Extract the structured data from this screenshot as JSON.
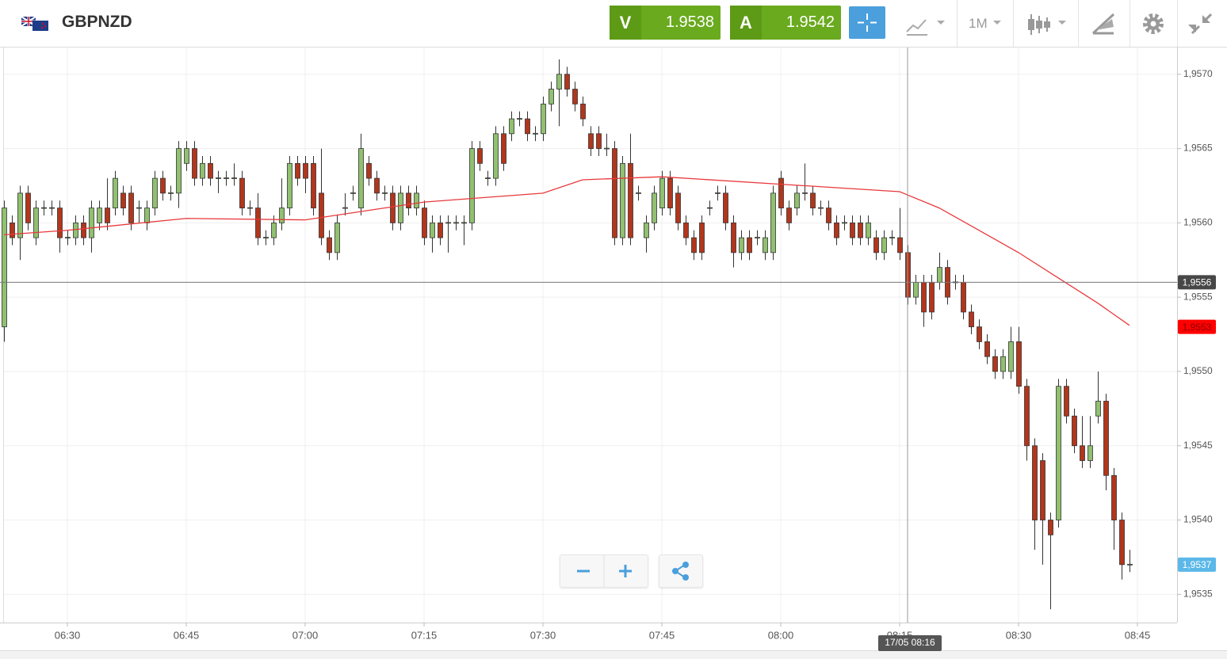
{
  "header": {
    "symbol": "GBPNZD",
    "bid_letter": "V",
    "bid": "1.9538",
    "ask_letter": "A",
    "ask": "1.9542",
    "timeframe": "1M"
  },
  "chart_data": {
    "type": "candlestick",
    "grid": true,
    "up_color": "#90c070",
    "down_color": "#b2361c",
    "xlim": [
      "06:22",
      "08:50"
    ],
    "xticks": [
      "06:30",
      "06:45",
      "07:00",
      "07:15",
      "07:30",
      "07:45",
      "08:00",
      "08:15",
      "08:30",
      "08:45"
    ],
    "ylim": [
      1.95331,
      1.95718
    ],
    "yticks": [
      {
        "value": 1.9535,
        "label": "1,9535"
      },
      {
        "value": 1.954,
        "label": "1,9540"
      },
      {
        "value": 1.9545,
        "label": "1,9545"
      },
      {
        "value": 1.955,
        "label": "1,9550"
      },
      {
        "value": 1.9555,
        "label": "1,9555"
      },
      {
        "value": 1.956,
        "label": "1,9560"
      },
      {
        "value": 1.9565,
        "label": "1,9565"
      },
      {
        "value": 1.957,
        "label": "1,9570"
      }
    ],
    "x": [
      "06:22",
      "06:23",
      "06:24",
      "06:25",
      "06:26",
      "06:27",
      "06:28",
      "06:29",
      "06:30",
      "06:31",
      "06:32",
      "06:33",
      "06:34",
      "06:35",
      "06:36",
      "06:37",
      "06:38",
      "06:39",
      "06:40",
      "06:41",
      "06:42",
      "06:43",
      "06:44",
      "06:45",
      "06:46",
      "06:47",
      "06:48",
      "06:49",
      "06:50",
      "06:51",
      "06:52",
      "06:53",
      "06:54",
      "06:55",
      "06:56",
      "06:57",
      "06:58",
      "06:59",
      "07:00",
      "07:01",
      "07:02",
      "07:03",
      "07:04",
      "07:05",
      "07:06",
      "07:07",
      "07:08",
      "07:09",
      "07:10",
      "07:11",
      "07:12",
      "07:13",
      "07:14",
      "07:15",
      "07:16",
      "07:17",
      "07:18",
      "07:19",
      "07:20",
      "07:21",
      "07:22",
      "07:23",
      "07:24",
      "07:25",
      "07:26",
      "07:27",
      "07:28",
      "07:29",
      "07:30",
      "07:31",
      "07:32",
      "07:33",
      "07:34",
      "07:35",
      "07:36",
      "07:37",
      "07:38",
      "07:39",
      "07:40",
      "07:41",
      "07:42",
      "07:43",
      "07:44",
      "07:45",
      "07:46",
      "07:47",
      "07:48",
      "07:49",
      "07:50",
      "07:51",
      "07:52",
      "07:53",
      "07:54",
      "07:55",
      "07:56",
      "07:57",
      "07:58",
      "07:59",
      "08:00",
      "08:01",
      "08:02",
      "08:03",
      "08:04",
      "08:05",
      "08:06",
      "08:07",
      "08:08",
      "08:09",
      "08:10",
      "08:11",
      "08:12",
      "08:13",
      "08:14",
      "08:15",
      "08:16",
      "08:17",
      "08:18",
      "08:19",
      "08:20",
      "08:21",
      "08:22",
      "08:23",
      "08:24",
      "08:25",
      "08:26",
      "08:27",
      "08:28",
      "08:29",
      "08:30",
      "08:31",
      "08:32",
      "08:33",
      "08:34",
      "08:35",
      "08:36",
      "08:37",
      "08:38",
      "08:39",
      "08:40",
      "08:41",
      "08:42",
      "08:43",
      "08:44"
    ],
    "open": [
      1.9553,
      1.956,
      1.9559,
      1.9562,
      1.9559,
      1.9561,
      1.9561,
      1.9561,
      1.9559,
      1.9559,
      1.956,
      1.9559,
      1.956,
      1.9561,
      1.9561,
      1.9562,
      1.9562,
      1.9561,
      1.956,
      1.9561,
      1.9563,
      1.9562,
      1.9562,
      1.9564,
      1.9565,
      1.9563,
      1.9564,
      1.9563,
      1.9563,
      1.9563,
      1.9563,
      1.9561,
      1.9561,
      1.9559,
      1.9559,
      1.956,
      1.9561,
      1.9564,
      1.9564,
      1.9564,
      1.9562,
      1.9559,
      1.9558,
      1.9561,
      1.9562,
      1.9561,
      1.9564,
      1.9563,
      1.9562,
      1.9562,
      1.956,
      1.9562,
      1.9561,
      1.9561,
      1.9559,
      1.956,
      1.956,
      1.956,
      1.956,
      1.956,
      1.9565,
      1.9563,
      1.9563,
      1.9566,
      1.9566,
      1.9567,
      1.9567,
      1.9566,
      1.9566,
      1.9568,
      1.9569,
      1.957,
      1.9569,
      1.9568,
      1.9566,
      1.9566,
      1.9565,
      1.9565,
      1.9559,
      1.9564,
      1.9562,
      1.9559,
      1.956,
      1.9561,
      1.9563,
      1.9562,
      1.956,
      1.9559,
      1.956,
      1.9561,
      1.9562,
      1.9562,
      1.956,
      1.9558,
      1.9559,
      1.9559,
      1.9558,
      1.9558,
      1.9563,
      1.9561,
      1.9561,
      1.9562,
      1.9562,
      1.9561,
      1.9561,
      1.956,
      1.956,
      1.956,
      1.956,
      1.9559,
      1.9559,
      1.9558,
      1.9559,
      1.9559,
      1.9558,
      1.9555,
      1.9556,
      1.9556,
      1.9556,
      1.9557,
      1.9556,
      1.9556,
      1.9554,
      1.9553,
      1.9552,
      1.9551,
      1.955,
      1.955,
      1.9552,
      1.9549,
      1.9545,
      1.9544,
      1.954,
      1.954,
      1.9549,
      1.9547,
      1.9545,
      1.9544,
      1.9547,
      1.9548,
      1.9543,
      1.954,
      1.9537
    ],
    "high": [
      1.95615,
      1.95605,
      1.95625,
      1.95625,
      1.95615,
      1.95615,
      1.95615,
      1.95615,
      1.95595,
      1.95605,
      1.95605,
      1.95615,
      1.95615,
      1.9563,
      1.95635,
      1.95625,
      1.95625,
      1.95615,
      1.95615,
      1.95635,
      1.95635,
      1.95625,
      1.95655,
      1.95655,
      1.95655,
      1.95645,
      1.95645,
      1.95635,
      1.95635,
      1.9564,
      1.95635,
      1.95615,
      1.9562,
      1.95595,
      1.95605,
      1.9563,
      1.95645,
      1.95645,
      1.95645,
      1.95645,
      1.9565,
      1.95595,
      1.95605,
      1.9562,
      1.95625,
      1.9566,
      1.95645,
      1.95635,
      1.95625,
      1.95625,
      1.95625,
      1.95625,
      1.95625,
      1.95615,
      1.95605,
      1.95605,
      1.95605,
      1.95605,
      1.95605,
      1.95655,
      1.95655,
      1.95635,
      1.95665,
      1.95665,
      1.95675,
      1.95675,
      1.95675,
      1.95665,
      1.95685,
      1.95695,
      1.9571,
      1.95705,
      1.95695,
      1.95685,
      1.95665,
      1.95665,
      1.9566,
      1.95655,
      1.95645,
      1.9566,
      1.95625,
      1.95605,
      1.95625,
      1.95635,
      1.95635,
      1.95625,
      1.95605,
      1.95595,
      1.95605,
      1.95615,
      1.95625,
      1.95625,
      1.95605,
      1.95595,
      1.95595,
      1.95595,
      1.95595,
      1.95625,
      1.95635,
      1.95615,
      1.95625,
      1.9564,
      1.95625,
      1.95615,
      1.95615,
      1.95605,
      1.95605,
      1.95605,
      1.95605,
      1.95605,
      1.95595,
      1.95595,
      1.95595,
      1.9561,
      1.95585,
      1.95565,
      1.95565,
      1.95565,
      1.9558,
      1.95575,
      1.95565,
      1.95565,
      1.95545,
      1.95535,
      1.95525,
      1.95515,
      1.95515,
      1.9553,
      1.9553,
      1.95495,
      1.95455,
      1.95445,
      1.95405,
      1.95495,
      1.95495,
      1.95475,
      1.9547,
      1.9547,
      1.955,
      1.95485,
      1.95435,
      1.95405,
      1.9538
    ],
    "low": [
      1.9552,
      1.95585,
      1.95575,
      1.95595,
      1.95585,
      1.95605,
      1.95605,
      1.9558,
      1.95585,
      1.95585,
      1.95585,
      1.9558,
      1.95595,
      1.95595,
      1.95605,
      1.95605,
      1.95595,
      1.956,
      1.95595,
      1.95605,
      1.95615,
      1.95615,
      1.9561,
      1.95635,
      1.95625,
      1.95625,
      1.95625,
      1.9562,
      1.95625,
      1.95625,
      1.95605,
      1.95605,
      1.95585,
      1.95585,
      1.95585,
      1.95595,
      1.95605,
      1.95625,
      1.9562,
      1.95605,
      1.95585,
      1.95575,
      1.95575,
      1.95605,
      1.95615,
      1.95605,
      1.95625,
      1.95615,
      1.95615,
      1.95595,
      1.95595,
      1.95605,
      1.95605,
      1.95585,
      1.9558,
      1.95585,
      1.9558,
      1.95595,
      1.95585,
      1.95595,
      1.95635,
      1.95625,
      1.95625,
      1.95635,
      1.95655,
      1.95665,
      1.95655,
      1.95655,
      1.95655,
      1.95675,
      1.95665,
      1.95685,
      1.95675,
      1.95665,
      1.95645,
      1.95645,
      1.95645,
      1.95585,
      1.95585,
      1.95585,
      1.95615,
      1.9558,
      1.95595,
      1.95605,
      1.95605,
      1.95595,
      1.95585,
      1.95575,
      1.95575,
      1.95605,
      1.95615,
      1.95595,
      1.9557,
      1.95575,
      1.95575,
      1.95585,
      1.95575,
      1.95575,
      1.95605,
      1.95595,
      1.95605,
      1.95615,
      1.95605,
      1.95605,
      1.95595,
      1.95585,
      1.95595,
      1.95585,
      1.95585,
      1.95585,
      1.95575,
      1.95575,
      1.95585,
      1.95575,
      1.95545,
      1.95545,
      1.9553,
      1.95535,
      1.95555,
      1.95545,
      1.95555,
      1.95535,
      1.95525,
      1.95515,
      1.95505,
      1.95495,
      1.95495,
      1.95495,
      1.95485,
      1.9544,
      1.9538,
      1.9537,
      1.9534,
      1.95395,
      1.95465,
      1.95445,
      1.95435,
      1.95435,
      1.95465,
      1.9542,
      1.9538,
      1.9536,
      1.95365
    ],
    "close": [
      1.9561,
      1.9559,
      1.9562,
      1.956,
      1.9561,
      1.9561,
      1.9561,
      1.9559,
      1.9559,
      1.956,
      1.9559,
      1.9561,
      1.9561,
      1.956,
      1.9563,
      1.9561,
      1.956,
      1.9561,
      1.9561,
      1.9563,
      1.9562,
      1.9562,
      1.9565,
      1.9565,
      1.9563,
      1.9564,
      1.9563,
      1.9563,
      1.9563,
      1.9563,
      1.9561,
      1.9561,
      1.9559,
      1.9559,
      1.956,
      1.9561,
      1.9564,
      1.9563,
      1.9563,
      1.9561,
      1.9559,
      1.9558,
      1.956,
      1.9561,
      1.9562,
      1.9565,
      1.9563,
      1.9562,
      1.9562,
      1.956,
      1.9562,
      1.9561,
      1.9562,
      1.9559,
      1.956,
      1.9559,
      1.956,
      1.956,
      1.956,
      1.9565,
      1.9564,
      1.9563,
      1.9566,
      1.9564,
      1.9567,
      1.9567,
      1.9566,
      1.9566,
      1.9568,
      1.9569,
      1.957,
      1.9569,
      1.9568,
      1.9567,
      1.9565,
      1.9565,
      1.9565,
      1.9559,
      1.9564,
      1.9559,
      1.9562,
      1.956,
      1.9562,
      1.9563,
      1.9561,
      1.956,
      1.9559,
      1.9558,
      1.9558,
      1.9561,
      1.9562,
      1.956,
      1.9558,
      1.9559,
      1.9558,
      1.9559,
      1.9559,
      1.9562,
      1.9561,
      1.956,
      1.9562,
      1.9562,
      1.9561,
      1.9561,
      1.956,
      1.9559,
      1.956,
      1.9559,
      1.9559,
      1.956,
      1.9558,
      1.9559,
      1.9559,
      1.9558,
      1.9555,
      1.9556,
      1.9554,
      1.9554,
      1.9557,
      1.9555,
      1.9556,
      1.9554,
      1.9553,
      1.9552,
      1.9551,
      1.955,
      1.9551,
      1.9552,
      1.9549,
      1.9545,
      1.954,
      1.954,
      1.9539,
      1.9549,
      1.9547,
      1.9545,
      1.9544,
      1.9545,
      1.9548,
      1.9543,
      1.954,
      1.9537,
      1.9537
    ],
    "ma": {
      "color": "#e8383a",
      "x": [
        "06:22",
        "06:30",
        "06:45",
        "07:00",
        "07:15",
        "07:30",
        "07:35",
        "07:45",
        "08:00",
        "08:15",
        "08:20",
        "08:25",
        "08:30",
        "08:35",
        "08:40",
        "08:44"
      ],
      "values": [
        1.95592,
        1.95595,
        1.95603,
        1.95602,
        1.95614,
        1.9562,
        1.95629,
        1.95631,
        1.95626,
        1.95621,
        1.9561,
        1.95595,
        1.9558,
        1.95563,
        1.95546,
        1.95531
      ]
    },
    "crosshair": {
      "price": {
        "value": 1.9556,
        "label": "1,9556"
      },
      "time": "17/05 08:16"
    },
    "ma_label": {
      "value": 1.9553,
      "label": "1,9553"
    },
    "last_price": {
      "value": 1.9537,
      "label": "1,9537"
    }
  }
}
